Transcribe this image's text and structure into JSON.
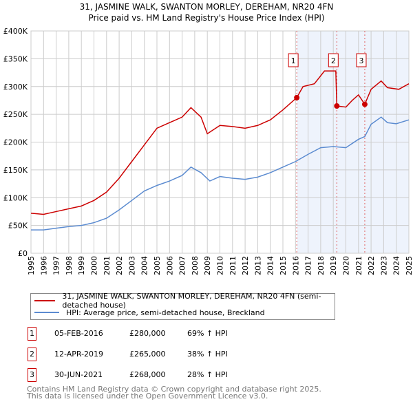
{
  "chart_data": {
    "type": "line",
    "title": "31, JASMINE WALK, SWANTON MORLEY, DEREHAM, NR20 4FN",
    "subtitle": "Price paid vs. HM Land Registry's House Price Index (HPI)",
    "xlim": [
      1995,
      2025
    ],
    "ylim": [
      0,
      400000
    ],
    "x_ticks": [
      "1995",
      "1996",
      "1997",
      "1998",
      "1999",
      "2000",
      "2001",
      "2002",
      "2003",
      "2004",
      "2005",
      "2006",
      "2007",
      "2008",
      "2009",
      "2010",
      "2011",
      "2012",
      "2013",
      "2014",
      "2015",
      "2016",
      "2017",
      "2018",
      "2019",
      "2020",
      "2021",
      "2022",
      "2023",
      "2024",
      "2025"
    ],
    "y_ticks": [
      {
        "v": 0,
        "l": "£0"
      },
      {
        "v": 50000,
        "l": "£50K"
      },
      {
        "v": 100000,
        "l": "£100K"
      },
      {
        "v": 150000,
        "l": "£150K"
      },
      {
        "v": 200000,
        "l": "£200K"
      },
      {
        "v": 250000,
        "l": "£250K"
      },
      {
        "v": 300000,
        "l": "£300K"
      },
      {
        "v": 350000,
        "l": "£350K"
      },
      {
        "v": 400000,
        "l": "£400K"
      }
    ],
    "grid": true,
    "series": [
      {
        "name": "31, JASMINE WALK, SWANTON MORLEY, DEREHAM, NR20 4FN (semi-detached house)",
        "color": "#cc0000",
        "x": [
          1995,
          1996,
          1997,
          1998,
          1999,
          2000,
          2001,
          2002,
          2003,
          2004,
          2005,
          2006,
          2007,
          2007.7,
          2008.5,
          2009,
          2010,
          2011,
          2012,
          2013,
          2014,
          2015,
          2016.1,
          2016.6,
          2017.5,
          2018.3,
          2019.2,
          2019.28,
          2020,
          2020.5,
          2021,
          2021.5,
          2022,
          2022.8,
          2023.3,
          2024.2,
          2025
        ],
        "y": [
          72000,
          70000,
          75000,
          80000,
          85000,
          95000,
          110000,
          135000,
          165000,
          195000,
          225000,
          235000,
          245000,
          262000,
          245000,
          215000,
          230000,
          228000,
          225000,
          230000,
          240000,
          258000,
          280000,
          300000,
          305000,
          328000,
          328000,
          265000,
          263000,
          275000,
          285000,
          268000,
          295000,
          310000,
          298000,
          295000,
          305000
        ]
      },
      {
        "name": "HPI: Average price, semi-detached house, Breckland",
        "color": "#5b8bd0",
        "x": [
          1995,
          1996,
          1997,
          1998,
          1999,
          2000,
          2001,
          2002,
          2003,
          2004,
          2005,
          2006,
          2007,
          2007.7,
          2008.5,
          2009.2,
          2010,
          2011,
          2012,
          2013,
          2014,
          2015,
          2016,
          2017,
          2018,
          2019,
          2020,
          2021,
          2021.5,
          2022,
          2022.8,
          2023.3,
          2024,
          2025
        ],
        "y": [
          42000,
          42000,
          45000,
          48000,
          50000,
          55000,
          63000,
          78000,
          95000,
          112000,
          122000,
          130000,
          140000,
          155000,
          145000,
          130000,
          138000,
          135000,
          133000,
          137000,
          145000,
          155000,
          165000,
          178000,
          190000,
          192000,
          190000,
          205000,
          210000,
          232000,
          245000,
          235000,
          233000,
          240000
        ]
      }
    ],
    "sales": [
      {
        "n": "1",
        "date": "05-FEB-2016",
        "x": 2016.1,
        "price": "£280,000",
        "v": 280000,
        "hpi": "69% ↑ HPI"
      },
      {
        "n": "2",
        "date": "12-APR-2019",
        "x": 2019.28,
        "price": "£265,000",
        "v": 265000,
        "hpi": "38% ↑ HPI"
      },
      {
        "n": "3",
        "date": "30-JUN-2021",
        "x": 2021.5,
        "price": "£268,000",
        "v": 268000,
        "hpi": "28% ↑ HPI"
      }
    ]
  },
  "footer": [
    "Contains HM Land Registry data © Crown copyright and database right 2025.",
    "This data is licensed under the Open Government Licence v3.0."
  ]
}
